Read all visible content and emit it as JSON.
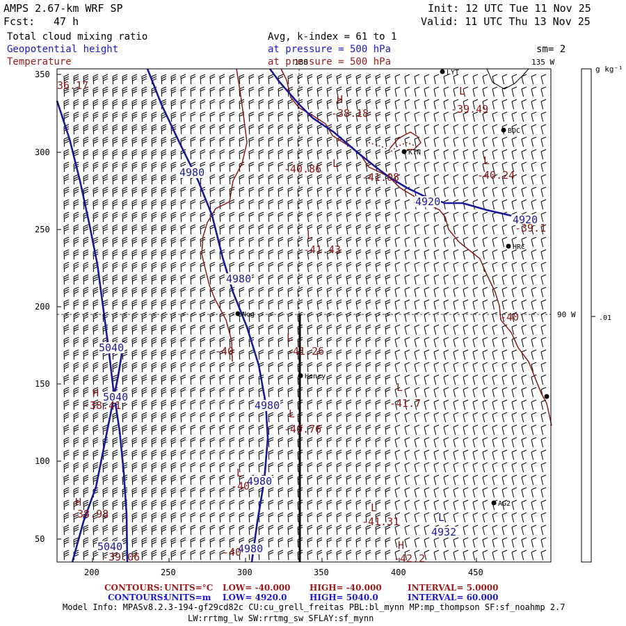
{
  "header": {
    "title": "AMPS 2.67-km WRF SP",
    "init": "Init: 12 UTC Tue 11 Nov 25",
    "fcst_label": "Fcst:",
    "fcst_value": "47 h",
    "valid": "Valid: 11 UTC Thu 13 Nov 25",
    "field1": "Total cloud mixing ratio",
    "field2": "Geopotential height",
    "field3": "Temperature",
    "avg_text": "Avg, k-index =  61 to   1",
    "pressure1": "at pressure =  500 hPa",
    "pressure2": "at pressure =  500 hPa",
    "smoothing": "sm= 2",
    "colors": {
      "black": "#000000",
      "height_blue": "#1a1a99",
      "temp_red": "#8b1a1a",
      "geo_blue": "#1a1acc"
    }
  },
  "map": {
    "x_ticks": [
      "200",
      "250",
      "300",
      "350",
      "400",
      "450"
    ],
    "y_ticks": [
      "350",
      "300",
      "250",
      "200",
      "150",
      "100",
      "50"
    ],
    "lon_labels": {
      "top": "180",
      "top_right": "135 W",
      "right": "90 W"
    },
    "stations": [
      {
        "code": "LYT"
      },
      {
        "code": "BDC"
      },
      {
        "code": "KTN"
      },
      {
        "code": "HRC"
      },
      {
        "code": "Nog"
      },
      {
        "code": "Henry"
      },
      {
        "code": "AG2"
      },
      {
        "code": ""
      }
    ],
    "height_labels": [
      "4980",
      "4920",
      "4920",
      "4980",
      "5040",
      "5040",
      "4980",
      "4980",
      "4980",
      "5040",
      "4932"
    ],
    "temp_labels": [
      "36.17",
      "-38.18",
      "-39.49",
      "-40.86",
      "-41.08",
      "-40.24",
      "-39.1",
      "-41.43",
      "-40",
      "-40",
      "-41.26",
      "-41.7",
      "-38.41",
      "-40.76",
      "-40",
      "-38.98",
      "-41.31",
      "-40",
      "-39.06",
      "-42.2"
    ],
    "hl_markers": [
      "H",
      "L",
      "L",
      "L",
      "L",
      "L",
      "H",
      "L",
      "L",
      "H",
      "L",
      "H",
      "L",
      "L"
    ]
  },
  "colorbar": {
    "unit": "g kg⁻¹",
    "tick": ".01"
  },
  "footer": {
    "line1_label": "CONTOURS:",
    "line1_units": "UNITS=°C",
    "line1_low": "LOW=  -40.000",
    "line1_high": "HIGH=  -40.000",
    "line1_interval": "INTERVAL=    5.0000",
    "line2_label": "CONTOURS:",
    "line2_units": "UNITS=m",
    "line2_low": "LOW=  4920.0",
    "line2_high": "HIGH=  5040.0",
    "line2_interval": "INTERVAL=   60.000",
    "model_info": "Model Info: MPASv8.2.3-194-gf29cd82c CU:cu_grell_freitas PBL:bl_mynn MP:mp_thompson SF:sf_noahmp 2.7",
    "model_info2": "LW:rrtmg_lw SW:rrtmg_sw SFLAY:sf_mynn"
  }
}
